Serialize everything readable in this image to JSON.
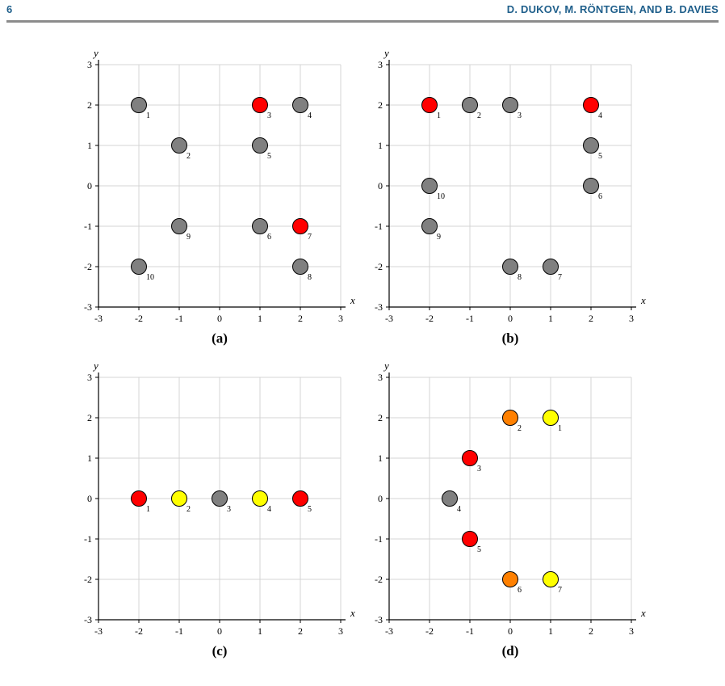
{
  "header": {
    "page_number": "6",
    "running_head": "D. DUKOV, M. RÖNTGEN, AND B. DAVIES"
  },
  "chart_data": [
    {
      "type": "scatter",
      "label": "(a)",
      "xlabel": "x",
      "ylabel": "y",
      "xlim": [
        -3,
        3
      ],
      "ylim": [
        -3,
        3
      ],
      "xticks": [
        "-3",
        "-2",
        "-1",
        "0",
        "1",
        "2",
        "3"
      ],
      "yticks": [
        "-3",
        "-2",
        "-1",
        "0",
        "1",
        "2",
        "3"
      ],
      "grid": true,
      "points": [
        {
          "x": -2,
          "y": 2,
          "label": "1",
          "color": "#808080"
        },
        {
          "x": -1,
          "y": 1,
          "label": "2",
          "color": "#808080"
        },
        {
          "x": 1,
          "y": 2,
          "label": "3",
          "color": "#ff0000"
        },
        {
          "x": 2,
          "y": 2,
          "label": "4",
          "color": "#808080"
        },
        {
          "x": 1,
          "y": 1,
          "label": "5",
          "color": "#808080"
        },
        {
          "x": 1,
          "y": -1,
          "label": "6",
          "color": "#808080"
        },
        {
          "x": 2,
          "y": -1,
          "label": "7",
          "color": "#ff0000"
        },
        {
          "x": 2,
          "y": -2,
          "label": "8",
          "color": "#808080"
        },
        {
          "x": -1,
          "y": -1,
          "label": "9",
          "color": "#808080"
        },
        {
          "x": -2,
          "y": -2,
          "label": "10",
          "color": "#808080"
        }
      ]
    },
    {
      "type": "scatter",
      "label": "(b)",
      "xlabel": "x",
      "ylabel": "y",
      "xlim": [
        -3,
        3
      ],
      "ylim": [
        -3,
        3
      ],
      "xticks": [
        "-3",
        "-2",
        "-1",
        "0",
        "1",
        "2",
        "3"
      ],
      "yticks": [
        "-3",
        "-2",
        "-1",
        "0",
        "1",
        "2",
        "3"
      ],
      "grid": true,
      "points": [
        {
          "x": -2,
          "y": 2,
          "label": "1",
          "color": "#ff0000"
        },
        {
          "x": -1,
          "y": 2,
          "label": "2",
          "color": "#808080"
        },
        {
          "x": 0,
          "y": 2,
          "label": "3",
          "color": "#808080"
        },
        {
          "x": 2,
          "y": 2,
          "label": "4",
          "color": "#ff0000"
        },
        {
          "x": 2,
          "y": 1,
          "label": "5",
          "color": "#808080"
        },
        {
          "x": 2,
          "y": 0,
          "label": "6",
          "color": "#808080"
        },
        {
          "x": 1,
          "y": -2,
          "label": "7",
          "color": "#808080"
        },
        {
          "x": 0,
          "y": -2,
          "label": "8",
          "color": "#808080"
        },
        {
          "x": -2,
          "y": -1,
          "label": "9",
          "color": "#808080"
        },
        {
          "x": -2,
          "y": 0,
          "label": "10",
          "color": "#808080"
        }
      ]
    },
    {
      "type": "scatter",
      "label": "(c)",
      "xlabel": "x",
      "ylabel": "y",
      "xlim": [
        -3,
        3
      ],
      "ylim": [
        -3,
        3
      ],
      "xticks": [
        "-3",
        "-2",
        "-1",
        "0",
        "1",
        "2",
        "3"
      ],
      "yticks": [
        "-3",
        "-2",
        "-1",
        "0",
        "1",
        "2",
        "3"
      ],
      "grid": true,
      "points": [
        {
          "x": -2,
          "y": 0,
          "label": "1",
          "color": "#ff0000"
        },
        {
          "x": -1,
          "y": 0,
          "label": "2",
          "color": "#ffff00"
        },
        {
          "x": 0,
          "y": 0,
          "label": "3",
          "color": "#808080"
        },
        {
          "x": 1,
          "y": 0,
          "label": "4",
          "color": "#ffff00"
        },
        {
          "x": 2,
          "y": 0,
          "label": "5",
          "color": "#ff0000"
        }
      ]
    },
    {
      "type": "scatter",
      "label": "(d)",
      "xlabel": "x",
      "ylabel": "y",
      "xlim": [
        -3,
        3
      ],
      "ylim": [
        -3,
        3
      ],
      "xticks": [
        "-3",
        "-2",
        "-1",
        "0",
        "1",
        "2",
        "3"
      ],
      "yticks": [
        "-3",
        "-2",
        "-1",
        "0",
        "1",
        "2",
        "3"
      ],
      "grid": true,
      "points": [
        {
          "x": 1,
          "y": 2,
          "label": "1",
          "color": "#ffff00"
        },
        {
          "x": 0,
          "y": 2,
          "label": "2",
          "color": "#ff8000"
        },
        {
          "x": -1,
          "y": 1,
          "label": "3",
          "color": "#ff0000"
        },
        {
          "x": -1.5,
          "y": 0,
          "label": "4",
          "color": "#808080"
        },
        {
          "x": -1,
          "y": -1,
          "label": "5",
          "color": "#ff0000"
        },
        {
          "x": 0,
          "y": -2,
          "label": "6",
          "color": "#ff8000"
        },
        {
          "x": 1,
          "y": -2,
          "label": "7",
          "color": "#ffff00"
        }
      ]
    }
  ]
}
